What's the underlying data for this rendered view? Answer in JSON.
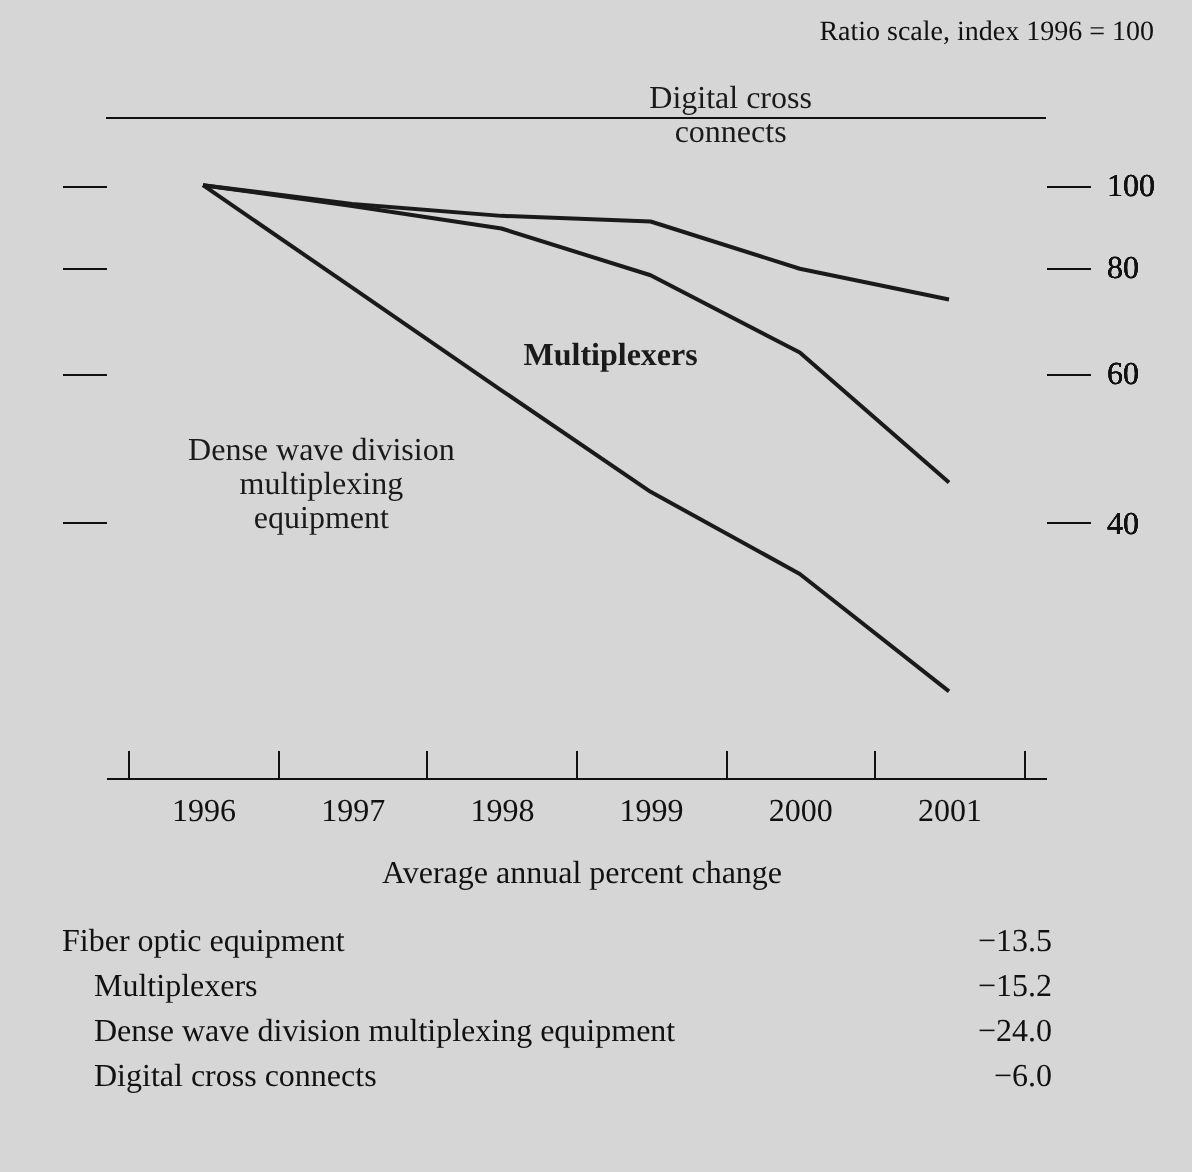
{
  "chart_data": [
    {
      "type": "line",
      "title": "Ratio scale, index 1996 = 100",
      "categories": [
        "1996",
        "1997",
        "1998",
        "1999",
        "2000",
        "2001"
      ],
      "series": [
        {
          "name": "Digital cross connects",
          "color": "#1a1a1a",
          "values": [
            100,
            95,
            92,
            90.6,
            79.7,
            73.3
          ]
        },
        {
          "name": "Multiplexers",
          "color": "#1a1a1a",
          "values": [
            100,
            94.5,
            88.9,
            78.3,
            63.5,
            44.6
          ]
        },
        {
          "name": "Dense wave division multiplexing equipment",
          "color": "#1a1a1a",
          "values": [
            100,
            75.7,
            57.3,
            43.5,
            34.8,
            25.3
          ]
        }
      ],
      "log": true,
      "ylim": [
        20,
        120
      ],
      "yticks": [
        40,
        60,
        80,
        100
      ],
      "grid": false,
      "legend": false,
      "marker": "none",
      "line_style": "solid"
    },
    {
      "type": "other",
      "title": "Average annual percent change",
      "categories": [
        "Fiber optic equipment",
        "Multiplexers",
        "Dense wave division multiplexing equipment",
        "Digital cross connects"
      ],
      "value_labels": [
        "−13.5",
        "−15.2",
        "−24.0",
        "−6.0"
      ]
    }
  ]
}
